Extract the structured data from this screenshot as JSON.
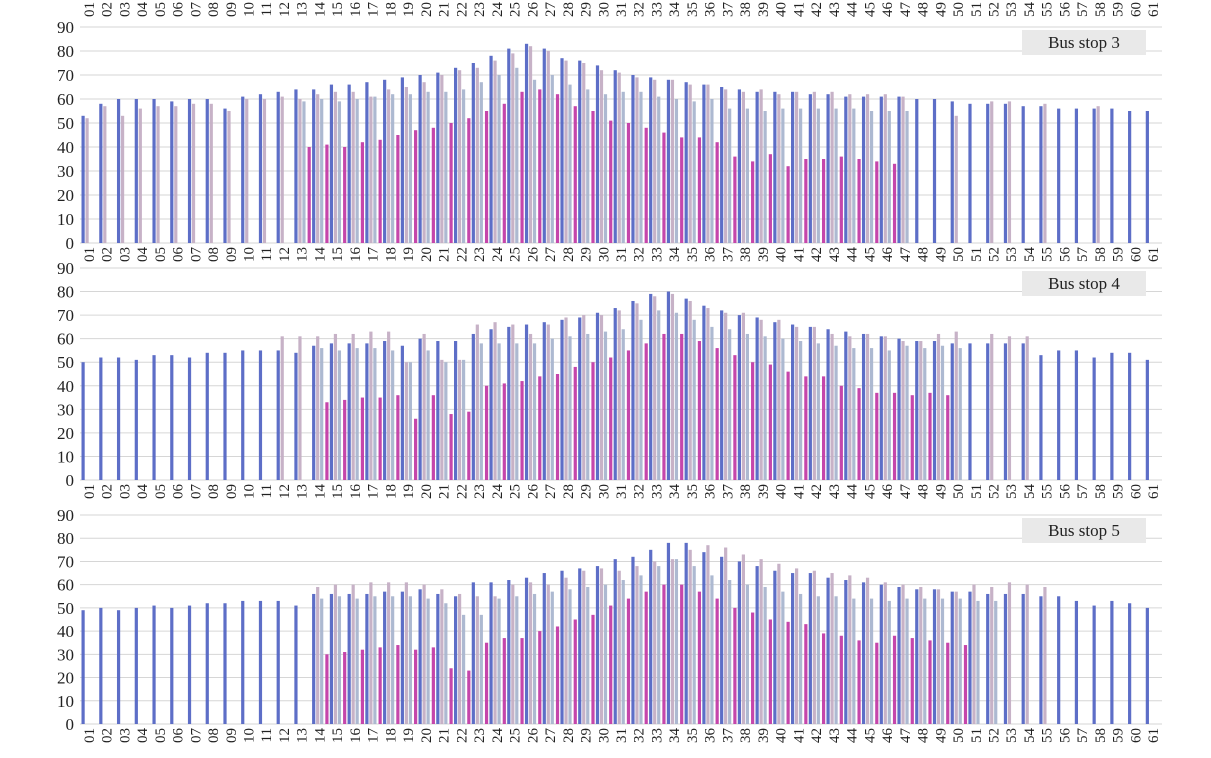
{
  "chart_data": [
    {
      "type": "bar",
      "title": "Bus stop 3",
      "ylim": [
        0,
        90
      ],
      "yticks": [
        "0",
        "10",
        "20",
        "30",
        "40",
        "50",
        "60",
        "70",
        "80",
        "90"
      ],
      "grid": true,
      "legend_placement": "top-right",
      "categories": [
        "01",
        "02",
        "03",
        "04",
        "05",
        "06",
        "07",
        "08",
        "09",
        "10",
        "11",
        "12",
        "13",
        "14",
        "15",
        "16",
        "17",
        "18",
        "19",
        "20",
        "21",
        "22",
        "23",
        "24",
        "25",
        "26",
        "27",
        "28",
        "29",
        "30",
        "31",
        "32",
        "33",
        "34",
        "35",
        "36",
        "37",
        "38",
        "39",
        "40",
        "41",
        "42",
        "43",
        "44",
        "45",
        "46",
        "47",
        "48",
        "49",
        "50",
        "51",
        "52",
        "53",
        "54",
        "55",
        "56",
        "57",
        "58",
        "59",
        "60",
        "61"
      ],
      "series": [
        {
          "color": "#5466c4",
          "values": [
            53,
            58,
            60,
            60,
            60,
            59,
            60,
            60,
            56,
            61,
            62,
            63,
            64,
            64,
            66,
            66,
            67,
            68,
            69,
            70,
            71,
            73,
            75,
            78,
            81,
            83,
            81,
            77,
            76,
            74,
            72,
            70,
            69,
            68,
            67,
            66,
            65,
            64,
            63,
            63,
            63,
            62,
            62,
            61,
            61,
            61,
            61,
            60,
            60,
            59,
            58,
            58,
            58,
            57,
            57,
            56,
            56,
            56,
            56,
            55,
            55
          ]
        },
        {
          "color": "#c4aec4",
          "values": [
            52,
            57,
            53,
            56,
            57,
            57,
            58,
            58,
            55,
            60,
            60,
            61,
            60,
            62,
            63,
            63,
            61,
            64,
            65,
            67,
            70,
            72,
            73,
            76,
            79,
            82,
            80,
            76,
            75,
            72,
            71,
            69,
            68,
            68,
            66,
            66,
            64,
            63,
            64,
            62,
            63,
            63,
            63,
            62,
            62,
            62,
            61,
            null,
            null,
            53,
            null,
            59,
            59,
            null,
            58,
            null,
            null,
            57,
            null,
            null,
            null
          ]
        },
        {
          "color": "#a9b5cf",
          "values": [
            null,
            null,
            null,
            null,
            null,
            null,
            null,
            null,
            null,
            null,
            null,
            null,
            59,
            60,
            59,
            60,
            61,
            62,
            62,
            63,
            63,
            64,
            67,
            70,
            73,
            68,
            70,
            66,
            64,
            62,
            63,
            63,
            61,
            60,
            59,
            60,
            56,
            56,
            55,
            56,
            56,
            56,
            56,
            56,
            55,
            55,
            55,
            null,
            null,
            null,
            null,
            null,
            null,
            null,
            null,
            null,
            null,
            null,
            null,
            null,
            null
          ]
        },
        {
          "color": "#c23ca6",
          "values": [
            null,
            null,
            null,
            null,
            null,
            null,
            null,
            null,
            null,
            null,
            null,
            null,
            null,
            40,
            41,
            40,
            42,
            43,
            45,
            47,
            48,
            50,
            52,
            55,
            58,
            63,
            64,
            62,
            57,
            55,
            51,
            50,
            48,
            46,
            44,
            44,
            42,
            36,
            34,
            37,
            32,
            35,
            35,
            36,
            35,
            34,
            33,
            null,
            null,
            null,
            null,
            null,
            null,
            null,
            null,
            null,
            null,
            null,
            null,
            null,
            null
          ]
        }
      ]
    },
    {
      "type": "bar",
      "title": "Bus stop 4",
      "ylim": [
        0,
        90
      ],
      "yticks": [
        "0",
        "10",
        "20",
        "30",
        "40",
        "50",
        "60",
        "70",
        "80",
        "90"
      ],
      "grid": true,
      "legend_placement": "top-right",
      "categories": [
        "01",
        "02",
        "03",
        "04",
        "05",
        "06",
        "07",
        "08",
        "09",
        "10",
        "11",
        "12",
        "13",
        "14",
        "15",
        "16",
        "17",
        "18",
        "19",
        "20",
        "21",
        "22",
        "23",
        "24",
        "25",
        "26",
        "27",
        "28",
        "29",
        "30",
        "31",
        "32",
        "33",
        "34",
        "35",
        "36",
        "37",
        "38",
        "39",
        "40",
        "41",
        "42",
        "43",
        "44",
        "45",
        "46",
        "47",
        "48",
        "49",
        "50",
        "51",
        "52",
        "53",
        "54",
        "55",
        "56",
        "57",
        "58",
        "59",
        "60",
        "61"
      ],
      "series": [
        {
          "color": "#5466c4",
          "values": [
            50,
            52,
            52,
            51,
            53,
            53,
            52,
            54,
            54,
            55,
            55,
            55,
            54,
            57,
            58,
            58,
            58,
            59,
            57,
            60,
            59,
            59,
            62,
            64,
            65,
            66,
            67,
            68,
            69,
            71,
            73,
            76,
            79,
            80,
            77,
            74,
            72,
            70,
            69,
            67,
            66,
            65,
            64,
            63,
            62,
            61,
            60,
            59,
            59,
            58,
            58,
            58,
            58,
            58,
            53,
            55,
            55,
            52,
            54,
            54,
            51
          ]
        },
        {
          "color": "#c4aec4",
          "values": [
            null,
            null,
            null,
            null,
            null,
            null,
            null,
            null,
            null,
            null,
            null,
            61,
            61,
            61,
            62,
            62,
            63,
            63,
            50,
            62,
            51,
            51,
            66,
            67,
            66,
            62,
            66,
            69,
            70,
            70,
            72,
            75,
            78,
            79,
            76,
            73,
            71,
            71,
            68,
            68,
            65,
            65,
            62,
            61,
            62,
            61,
            59,
            59,
            62,
            63,
            null,
            62,
            61,
            61,
            null,
            null,
            null,
            null,
            null,
            null,
            null
          ]
        },
        {
          "color": "#a9b5cf",
          "values": [
            null,
            null,
            null,
            null,
            null,
            null,
            null,
            null,
            null,
            null,
            null,
            null,
            null,
            56,
            55,
            56,
            56,
            55,
            50,
            55,
            50,
            51,
            58,
            58,
            58,
            58,
            60,
            61,
            62,
            63,
            64,
            68,
            72,
            71,
            68,
            65,
            64,
            62,
            61,
            60,
            59,
            58,
            57,
            56,
            56,
            55,
            57,
            56,
            57,
            56,
            null,
            null,
            null,
            null,
            null,
            null,
            null,
            null,
            null,
            null,
            null
          ]
        },
        {
          "color": "#c23ca6",
          "values": [
            null,
            null,
            null,
            null,
            null,
            null,
            null,
            null,
            null,
            null,
            null,
            null,
            null,
            null,
            33,
            34,
            35,
            35,
            36,
            26,
            36,
            28,
            29,
            40,
            41,
            42,
            44,
            45,
            48,
            50,
            52,
            55,
            58,
            62,
            62,
            59,
            56,
            53,
            50,
            49,
            46,
            44,
            44,
            40,
            39,
            37,
            37,
            36,
            37,
            36,
            null,
            null,
            null,
            null,
            null,
            null,
            null,
            null,
            null,
            null,
            null
          ]
        }
      ]
    },
    {
      "type": "bar",
      "title": "Bus stop 5",
      "ylim": [
        0,
        90
      ],
      "yticks": [
        "0",
        "10",
        "20",
        "30",
        "40",
        "50",
        "60",
        "70",
        "80",
        "90"
      ],
      "grid": true,
      "legend_placement": "top-right",
      "categories": [
        "01",
        "02",
        "03",
        "04",
        "05",
        "06",
        "07",
        "08",
        "09",
        "10",
        "11",
        "12",
        "13",
        "14",
        "15",
        "16",
        "17",
        "18",
        "19",
        "20",
        "21",
        "22",
        "23",
        "24",
        "25",
        "26",
        "27",
        "28",
        "29",
        "30",
        "31",
        "32",
        "33",
        "34",
        "35",
        "36",
        "37",
        "38",
        "39",
        "40",
        "41",
        "42",
        "43",
        "44",
        "45",
        "46",
        "47",
        "48",
        "49",
        "50",
        "51",
        "52",
        "53",
        "54",
        "55",
        "56",
        "57",
        "58",
        "59",
        "60",
        "61"
      ],
      "series": [
        {
          "color": "#5466c4",
          "values": [
            49,
            50,
            49,
            50,
            51,
            50,
            51,
            52,
            52,
            53,
            53,
            53,
            51,
            56,
            56,
            56,
            56,
            57,
            57,
            58,
            56,
            55,
            61,
            61,
            62,
            63,
            65,
            66,
            67,
            68,
            71,
            72,
            75,
            78,
            78,
            74,
            72,
            70,
            68,
            66,
            65,
            65,
            63,
            62,
            61,
            60,
            59,
            58,
            58,
            57,
            57,
            56,
            56,
            56,
            55,
            55,
            53,
            51,
            53,
            52,
            50
          ]
        },
        {
          "color": "#c4aec4",
          "values": [
            null,
            null,
            null,
            null,
            null,
            null,
            null,
            null,
            null,
            null,
            null,
            null,
            null,
            59,
            60,
            60,
            61,
            61,
            61,
            60,
            58,
            56,
            55,
            55,
            60,
            61,
            60,
            63,
            66,
            67,
            66,
            68,
            70,
            71,
            75,
            77,
            76,
            73,
            71,
            69,
            67,
            66,
            65,
            64,
            63,
            61,
            60,
            59,
            58,
            57,
            60,
            59,
            61,
            60,
            59,
            null,
            null,
            null,
            null,
            null,
            null
          ]
        },
        {
          "color": "#a9b5cf",
          "values": [
            null,
            null,
            null,
            null,
            null,
            null,
            null,
            null,
            null,
            null,
            null,
            null,
            null,
            54,
            55,
            54,
            55,
            55,
            55,
            54,
            52,
            47,
            47,
            54,
            55,
            56,
            57,
            58,
            59,
            60,
            62,
            64,
            68,
            71,
            68,
            64,
            62,
            60,
            59,
            57,
            56,
            55,
            55,
            54,
            54,
            53,
            54,
            54,
            54,
            54,
            53,
            53,
            null,
            null,
            null,
            null,
            null,
            null,
            null,
            null,
            null
          ]
        },
        {
          "color": "#c23ca6",
          "values": [
            null,
            null,
            null,
            null,
            null,
            null,
            null,
            null,
            null,
            null,
            null,
            null,
            null,
            null,
            30,
            31,
            32,
            33,
            34,
            32,
            33,
            24,
            23,
            35,
            37,
            37,
            40,
            42,
            45,
            47,
            51,
            54,
            57,
            60,
            60,
            57,
            54,
            50,
            48,
            45,
            44,
            43,
            39,
            38,
            36,
            35,
            38,
            37,
            36,
            35,
            34,
            null,
            null,
            null,
            null,
            null,
            null,
            null,
            null,
            null,
            null
          ]
        }
      ]
    }
  ]
}
